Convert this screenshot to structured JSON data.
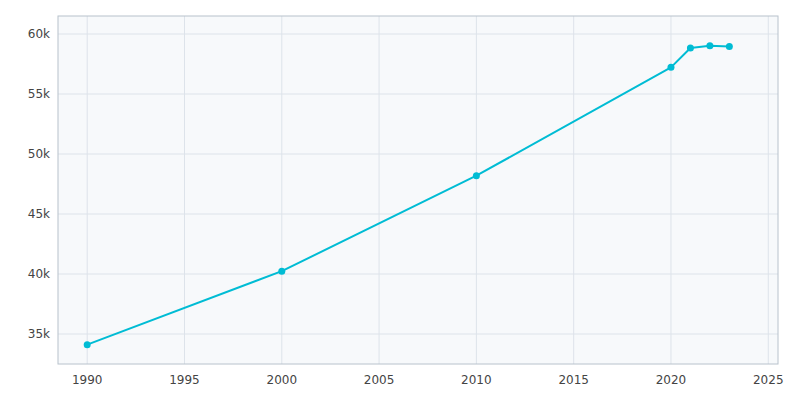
{
  "chart_data": {
    "type": "line",
    "x": [
      1990,
      2000,
      2010,
      2020,
      2021,
      2022,
      2023
    ],
    "values": [
      34110,
      40238,
      48190,
      57220,
      58834,
      59012,
      58950
    ],
    "color": "#00BCD4",
    "marker": "circle",
    "xlim": [
      1988.5,
      2025.5
    ],
    "ylim": [
      32500,
      61500
    ],
    "xticks": [
      1990,
      1995,
      2000,
      2005,
      2010,
      2015,
      2020,
      2025
    ],
    "yticks": [
      {
        "value": 35000,
        "label": "35k"
      },
      {
        "value": 40000,
        "label": "40k"
      },
      {
        "value": 45000,
        "label": "45k"
      },
      {
        "value": 50000,
        "label": "50k"
      },
      {
        "value": 55000,
        "label": "55k"
      },
      {
        "value": 60000,
        "label": "60k"
      }
    ],
    "grid": true
  }
}
